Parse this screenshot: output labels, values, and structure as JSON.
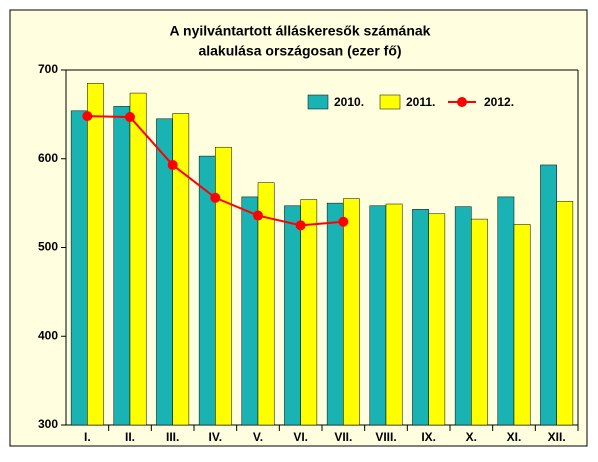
{
  "chart_data": {
    "type": "bar",
    "title": [
      "A nyilvántartott álláskeresők számának",
      "alakulása országosan (ezer fő)"
    ],
    "categories": [
      "I.",
      "II.",
      "III.",
      "IV.",
      "V.",
      "VI.",
      "VII.",
      "VIII.",
      "IX.",
      "X.",
      "XI.",
      "XII."
    ],
    "series": [
      {
        "name": "2010.",
        "type": "bar",
        "color": "#1ab3b3",
        "values": [
          654,
          659,
          645,
          603,
          557,
          547,
          550,
          547,
          543,
          546,
          557,
          593
        ]
      },
      {
        "name": "2011.",
        "type": "bar",
        "color": "#ffff00",
        "values": [
          685,
          674,
          651,
          613,
          573,
          554,
          555,
          549,
          538,
          532,
          526,
          552
        ]
      },
      {
        "name": "2012.",
        "type": "line",
        "color": "#ff0000",
        "values": [
          648,
          647,
          593,
          556,
          536,
          525,
          529,
          null,
          null,
          null,
          null,
          null
        ]
      }
    ],
    "ylim": [
      300,
      700
    ],
    "yticks": [
      300,
      400,
      500,
      600,
      700
    ],
    "grid": false,
    "legend": "top-right"
  }
}
